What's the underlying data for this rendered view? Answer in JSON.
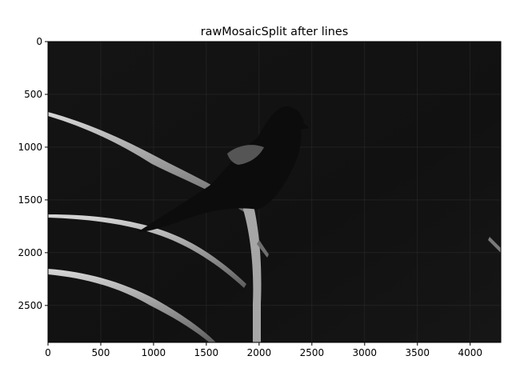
{
  "chart_data": {
    "type": "image",
    "title": "rawMosaicSplit after lines",
    "xlabel": "",
    "ylabel": "",
    "xlim": [
      0,
      4290
    ],
    "ylim": [
      2850,
      0
    ],
    "y_axis_inverted": true,
    "x_ticks": [
      0,
      500,
      1000,
      1500,
      2000,
      2500,
      3000,
      3500,
      4000
    ],
    "y_ticks": [
      0,
      500,
      1000,
      1500,
      2000,
      2500
    ],
    "x_tick_labels": [
      "0",
      "500",
      "1000",
      "1500",
      "2000",
      "2500",
      "3000",
      "3500",
      "4000"
    ],
    "y_tick_labels": [
      "0",
      "500",
      "1000",
      "1500",
      "2000",
      "2500"
    ],
    "colormap": "gray",
    "image_subject": "grayscale photo of a blackbird perched on bare branches against a dark background",
    "grid": true,
    "colors": {
      "background": "#121212",
      "branch_light": "#c8c8c8",
      "branch_mid": "#8a8a8a",
      "bird": "#0b0b0b",
      "wing_patch": "#5a5a5a"
    }
  }
}
